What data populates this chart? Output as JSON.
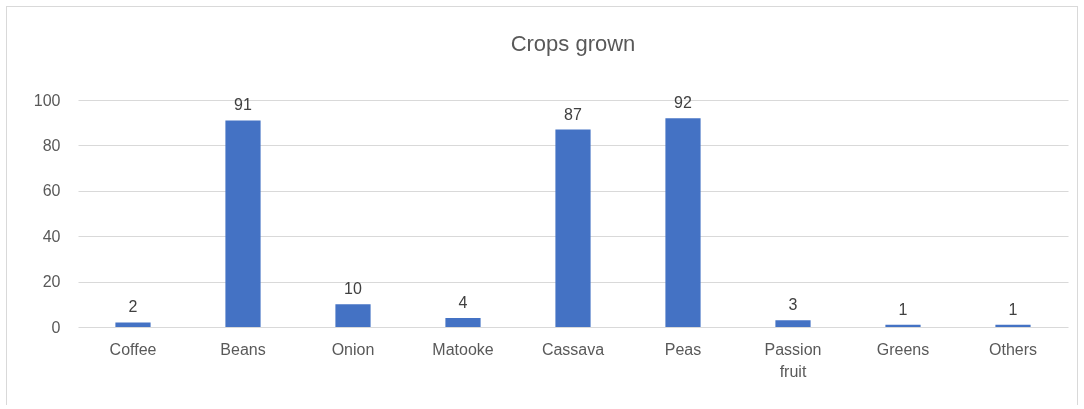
{
  "chart_data": {
    "type": "bar",
    "title": "Crops grown",
    "categories": [
      "Coffee",
      "Beans",
      "Onion",
      "Matooke",
      "Cassava",
      "Peas",
      "Passion fruit",
      "Greens",
      "Others"
    ],
    "values": [
      2,
      91,
      10,
      4,
      87,
      92,
      3,
      1,
      1
    ],
    "color": "#4472c4",
    "ylim": [
      0,
      100
    ],
    "yticks": [
      0,
      20,
      40,
      60,
      80,
      100
    ],
    "grid": "y",
    "data_labels": true
  }
}
